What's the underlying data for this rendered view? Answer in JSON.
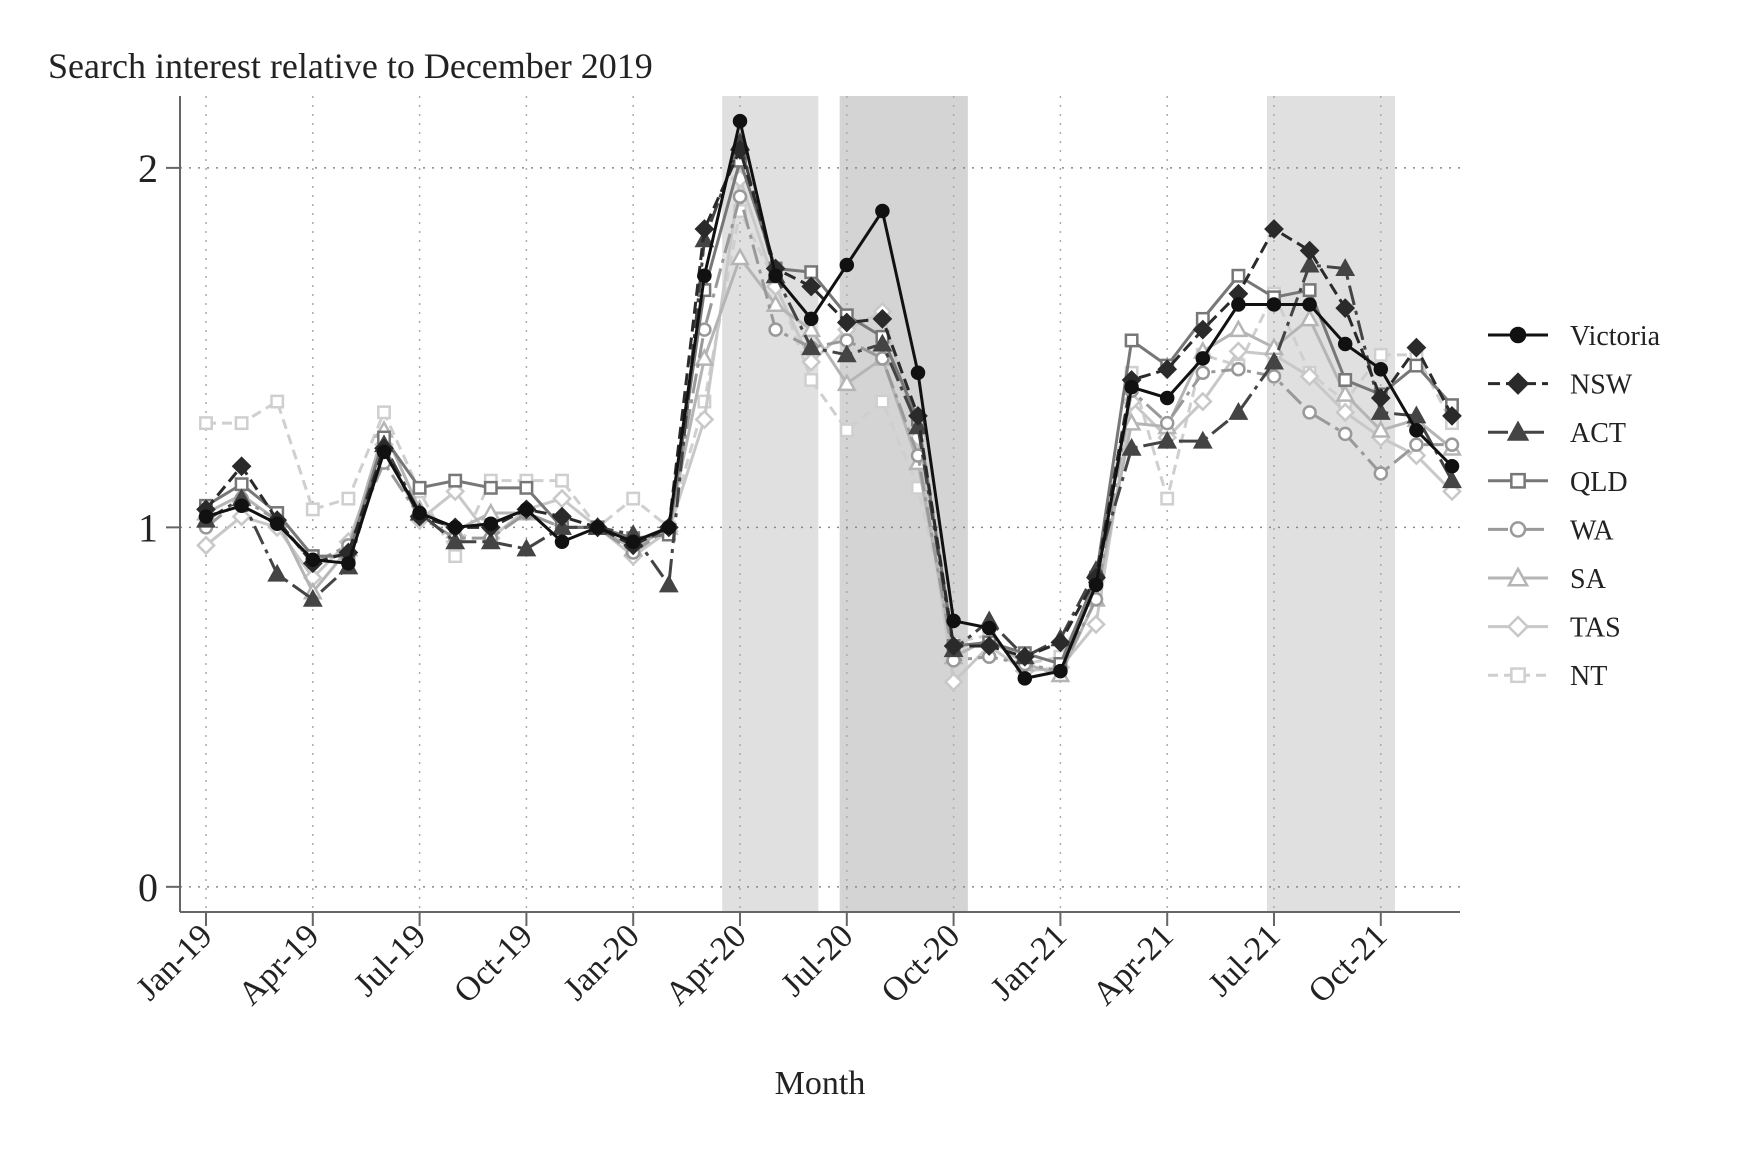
{
  "chart_data": {
    "type": "line",
    "title": "Search interest relative to December 2019",
    "xlabel": "Month",
    "ylabel": "",
    "ylim": [
      -0.07,
      2.2
    ],
    "yticks": [
      0,
      1,
      2
    ],
    "grid": true,
    "legend_position": "right",
    "categories": [
      "Jan-19",
      "Feb-19",
      "Mar-19",
      "Apr-19",
      "May-19",
      "Jun-19",
      "Jul-19",
      "Aug-19",
      "Sep-19",
      "Oct-19",
      "Nov-19",
      "Dec-19",
      "Jan-20",
      "Feb-20",
      "Mar-20",
      "Apr-20",
      "May-20",
      "Jun-20",
      "Jul-20",
      "Aug-20",
      "Sep-20",
      "Oct-20",
      "Nov-20",
      "Dec-20",
      "Jan-21",
      "Feb-21",
      "Mar-21",
      "Apr-21",
      "May-21",
      "Jun-21",
      "Jul-21",
      "Aug-21",
      "Sep-21",
      "Oct-21",
      "Nov-21",
      "Dec-21"
    ],
    "xtick_labels": [
      {
        "index": 0,
        "label": "Jan-19"
      },
      {
        "index": 3,
        "label": "Apr-19"
      },
      {
        "index": 6,
        "label": "Jul-19"
      },
      {
        "index": 9,
        "label": "Oct-19"
      },
      {
        "index": 12,
        "label": "Jan-20"
      },
      {
        "index": 15,
        "label": "Apr-20"
      },
      {
        "index": 18,
        "label": "Jul-20"
      },
      {
        "index": 21,
        "label": "Oct-20"
      },
      {
        "index": 24,
        "label": "Jan-21"
      },
      {
        "index": 27,
        "label": "Apr-21"
      },
      {
        "index": 30,
        "label": "Jul-21"
      },
      {
        "index": 33,
        "label": "Oct-21"
      }
    ],
    "shaded_periods": [
      {
        "start": 14.5,
        "end": 17.2,
        "shade": "#e0e0e0"
      },
      {
        "start": 17.8,
        "end": 21.4,
        "shade": "#d4d4d4"
      },
      {
        "start": 29.8,
        "end": 33.4,
        "shade": "#e0e0e0"
      }
    ],
    "series": [
      {
        "name": "Victoria",
        "color": "#111111",
        "dash": "",
        "marker": "circle",
        "filled": true,
        "values": [
          1.03,
          1.06,
          1.01,
          0.91,
          0.9,
          1.21,
          1.04,
          1.0,
          1.01,
          1.05,
          0.96,
          1.0,
          0.96,
          1.0,
          1.7,
          2.13,
          1.7,
          1.58,
          1.73,
          1.88,
          1.43,
          0.74,
          0.72,
          0.58,
          0.6,
          0.84,
          1.39,
          1.36,
          1.47,
          1.62,
          1.62,
          1.62,
          1.51,
          1.44,
          1.27,
          1.17
        ]
      },
      {
        "name": "NSW",
        "color": "#2a2a2a",
        "dash": "12,6",
        "marker": "diamond",
        "filled": true,
        "values": [
          1.05,
          1.17,
          1.02,
          0.9,
          0.93,
          1.22,
          1.03,
          1.0,
          1.0,
          1.05,
          1.03,
          1.0,
          0.95,
          1.0,
          1.83,
          2.05,
          1.72,
          1.67,
          1.57,
          1.58,
          1.31,
          0.67,
          0.67,
          0.64,
          0.68,
          0.86,
          1.41,
          1.44,
          1.55,
          1.65,
          1.83,
          1.77,
          1.61,
          1.36,
          1.5,
          1.31
        ]
      },
      {
        "name": "ACT",
        "color": "#444444",
        "dash": "20,6,4,6",
        "marker": "triangle",
        "filled": true,
        "values": [
          1.02,
          1.08,
          0.87,
          0.8,
          0.89,
          1.23,
          1.04,
          0.96,
          0.96,
          0.94,
          1.0,
          1.0,
          0.98,
          0.84,
          1.8,
          2.07,
          1.7,
          1.5,
          1.48,
          1.51,
          1.28,
          0.66,
          0.74,
          0.64,
          0.69,
          0.88,
          1.22,
          1.24,
          1.24,
          1.32,
          1.46,
          1.73,
          1.72,
          1.32,
          1.31,
          1.13
        ]
      },
      {
        "name": "QLD",
        "color": "#777777",
        "dash": "",
        "marker": "square",
        "filled": false,
        "values": [
          1.06,
          1.12,
          1.04,
          0.92,
          0.92,
          1.25,
          1.11,
          1.13,
          1.11,
          1.11,
          1.0,
          1.0,
          0.97,
          0.98,
          1.66,
          2.02,
          1.72,
          1.71,
          1.59,
          1.53,
          1.3,
          0.67,
          0.68,
          0.65,
          0.62,
          0.86,
          1.52,
          1.45,
          1.58,
          1.7,
          1.64,
          1.66,
          1.41,
          1.37,
          1.45,
          1.34
        ]
      },
      {
        "name": "WA",
        "color": "#999999",
        "dash": "20,6,4,6",
        "marker": "circle",
        "filled": false,
        "values": [
          1.0,
          1.08,
          1.02,
          0.9,
          0.95,
          1.18,
          1.03,
          0.97,
          0.97,
          1.04,
          1.0,
          1.0,
          0.93,
          1.0,
          1.55,
          1.92,
          1.55,
          1.5,
          1.52,
          1.47,
          1.2,
          0.63,
          0.64,
          0.62,
          0.6,
          0.8,
          1.38,
          1.29,
          1.43,
          1.44,
          1.42,
          1.32,
          1.26,
          1.15,
          1.23,
          1.23
        ]
      },
      {
        "name": "SA",
        "color": "#b5b5b5",
        "dash": "",
        "marker": "triangle",
        "filled": false,
        "values": [
          1.04,
          1.09,
          1.02,
          0.82,
          0.94,
          1.27,
          1.05,
          0.99,
          1.04,
          1.04,
          1.0,
          1.0,
          0.94,
          1.0,
          1.47,
          1.75,
          1.62,
          1.55,
          1.4,
          1.47,
          1.18,
          0.64,
          0.69,
          0.62,
          0.59,
          0.8,
          1.29,
          1.28,
          1.49,
          1.55,
          1.5,
          1.58,
          1.37,
          1.27,
          1.3,
          1.22
        ]
      },
      {
        "name": "TAS",
        "color": "#c8c8c8",
        "dash": "",
        "marker": "diamond",
        "filled": false,
        "values": [
          0.95,
          1.03,
          1.0,
          0.86,
          0.96,
          1.23,
          1.02,
          1.1,
          0.97,
          1.05,
          1.08,
          1.0,
          0.92,
          0.99,
          1.3,
          1.97,
          1.67,
          1.46,
          1.55,
          1.6,
          1.25,
          0.57,
          0.67,
          0.6,
          0.61,
          0.73,
          1.35,
          1.25,
          1.35,
          1.49,
          1.48,
          1.42,
          1.32,
          1.25,
          1.2,
          1.1
        ]
      },
      {
        "name": "NT",
        "color": "#cfcfcf",
        "dash": "10,6",
        "marker": "square",
        "filled": false,
        "values": [
          1.29,
          1.29,
          1.35,
          1.05,
          1.08,
          1.32,
          1.1,
          0.92,
          1.13,
          1.13,
          1.13,
          1.0,
          1.08,
          1.0,
          1.35,
          1.88,
          1.68,
          1.41,
          1.27,
          1.35,
          1.11,
          0.68,
          0.7,
          0.62,
          0.64,
          0.83,
          1.43,
          1.08,
          1.48,
          1.45,
          1.65,
          1.43,
          1.35,
          1.48,
          1.48,
          1.29
        ]
      }
    ]
  }
}
